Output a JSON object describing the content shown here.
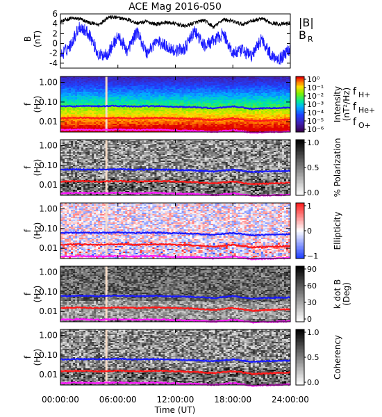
{
  "figure": {
    "title": "ACE Mag 2016-050",
    "xlabel": "Time (UT)",
    "x_ticks": [
      "00:00:00",
      "06:00:00",
      "12:00:00",
      "18:00:00",
      "24:00:00"
    ]
  },
  "colors": {
    "B_total": "#000000",
    "B_R": "#1a1aff",
    "f_H": "#1a1aff",
    "f_He": "#ff1a1a",
    "f_O": "#ff1aff",
    "data_gap": "#f6dcc8"
  },
  "chart_data": [
    {
      "type": "line",
      "panel": "field",
      "ylabel": "B",
      "yunit": "(nT)",
      "ylim": [
        -5,
        6
      ],
      "y_ticks": [
        "6",
        "4",
        "2",
        "0",
        "-2",
        "-4"
      ],
      "legend": [
        "|B|",
        "B_R"
      ],
      "x_hours": [
        0,
        1,
        2,
        3,
        4,
        5,
        6,
        7,
        8,
        9,
        10,
        11,
        12,
        13,
        14,
        15,
        16,
        17,
        18,
        19,
        20,
        21,
        22,
        23,
        24
      ],
      "series": [
        {
          "name": "|B|",
          "values": [
            4.4,
            5.1,
            5.0,
            4.2,
            3.8,
            5.4,
            5.2,
            4.9,
            4.1,
            4.4,
            3.9,
            4.3,
            4.0,
            3.5,
            4.2,
            4.7,
            3.3,
            4.9,
            4.5,
            3.9,
            4.6,
            5.0,
            4.2,
            3.9,
            4.1
          ]
        },
        {
          "name": "B_R",
          "values": [
            -2.5,
            -0.5,
            3.5,
            2.0,
            -2.5,
            -2.0,
            1.5,
            -1.5,
            2.5,
            -2.0,
            0.5,
            -0.5,
            -1.5,
            -1.0,
            2.5,
            -0.5,
            0.5,
            2.0,
            -2.0,
            -1.5,
            -2.5,
            1.0,
            -2.5,
            -3.0,
            -1.0
          ]
        }
      ]
    },
    {
      "type": "heatmap",
      "panel": "power",
      "ylabel": "f",
      "yunit": "(Hz)",
      "y_ticks": [
        "1.00",
        "0.10",
        "0.01"
      ],
      "colorbar_label": "Intensity",
      "colorbar_unit": "(nT²/Hz)",
      "colorbar_ticks": [
        "10⁰",
        "10⁻¹",
        "10⁻²",
        "10⁻³",
        "10⁻⁴",
        "10⁻⁵",
        "10⁻⁶"
      ],
      "legend": [
        "f_H+",
        "f_He+",
        "f_O+"
      ]
    },
    {
      "type": "heatmap",
      "panel": "polarization",
      "ylabel": "f",
      "yunit": "(Hz)",
      "y_ticks": [
        "1.00",
        "0.10",
        "0.01"
      ],
      "colorbar_label": "% Polarization",
      "colorbar_ticks": [
        "1.0",
        "0.5",
        "0.0"
      ]
    },
    {
      "type": "heatmap",
      "panel": "ellipticity",
      "ylabel": "f",
      "yunit": "(Hz)",
      "y_ticks": [
        "1.00",
        "0.10",
        "0.01"
      ],
      "colorbar_label": "Ellipticity",
      "colorbar_ticks": [
        "1",
        "0",
        "−1"
      ]
    },
    {
      "type": "heatmap",
      "panel": "kdotb",
      "ylabel": "f",
      "yunit": "(Hz)",
      "y_ticks": [
        "1.00",
        "0.10",
        "0.01"
      ],
      "colorbar_label": "k dot B",
      "colorbar_unit": "(Deg)",
      "colorbar_ticks": [
        "90",
        "60",
        "30",
        "0"
      ]
    },
    {
      "type": "heatmap",
      "panel": "coherency",
      "ylabel": "f",
      "yunit": "(Hz)",
      "y_ticks": [
        "1.00",
        "0.10",
        "0.01"
      ],
      "colorbar_label": "Coherency",
      "colorbar_ticks": [
        "1.0",
        "0.5",
        "0.0"
      ]
    }
  ],
  "gyrofrequencies": {
    "x_hours": [
      0,
      2,
      4,
      6,
      8,
      10,
      12,
      14,
      16,
      18,
      20,
      22,
      24
    ],
    "f_H": [
      0.06,
      0.062,
      0.061,
      0.064,
      0.06,
      0.062,
      0.058,
      0.055,
      0.048,
      0.06,
      0.045,
      0.05,
      0.052
    ],
    "f_He": [
      0.015,
      0.016,
      0.015,
      0.016,
      0.015,
      0.016,
      0.015,
      0.014,
      0.012,
      0.015,
      0.011,
      0.012,
      0.013
    ],
    "f_O": [
      0.0038,
      0.004,
      0.0038,
      0.004,
      0.0038,
      0.004,
      0.0036,
      0.0035,
      0.003,
      0.0038,
      0.0028,
      0.003,
      0.0032
    ]
  },
  "data_gap_hour": 4.8
}
